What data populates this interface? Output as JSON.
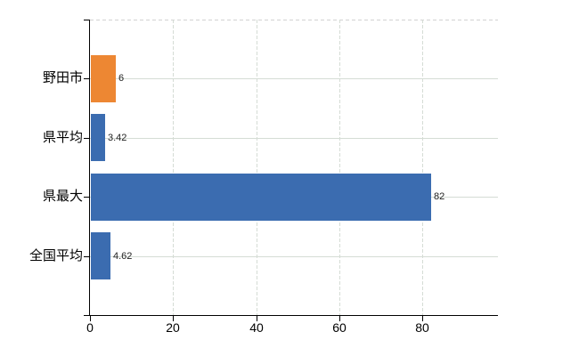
{
  "chart_data": {
    "type": "bar",
    "orientation": "horizontal",
    "title": "",
    "categories": [
      "野田市",
      "県平均",
      "県最大",
      "全国平均"
    ],
    "values": [
      6,
      3.42,
      82,
      4.62
    ],
    "value_labels": [
      "6",
      "3.42",
      "82",
      "4.62"
    ],
    "x_ticks": [
      "0",
      "20",
      "40",
      "60",
      "80"
    ],
    "x_tick_values": [
      0,
      20,
      40,
      60,
      80
    ],
    "xlim": [
      0,
      98.2
    ],
    "grid": "on",
    "legend": "none",
    "colors": {
      "highlight_bar": "#ed8733",
      "default_bar": "#3b6cb0",
      "grid": "#d5dcd5",
      "top_border": "#d2d2d2",
      "axis": "#000000",
      "value_label": "#222222"
    },
    "bar_colors": [
      "#ed8733",
      "#3b6cb0",
      "#3b6cb0",
      "#3b6cb0"
    ]
  }
}
